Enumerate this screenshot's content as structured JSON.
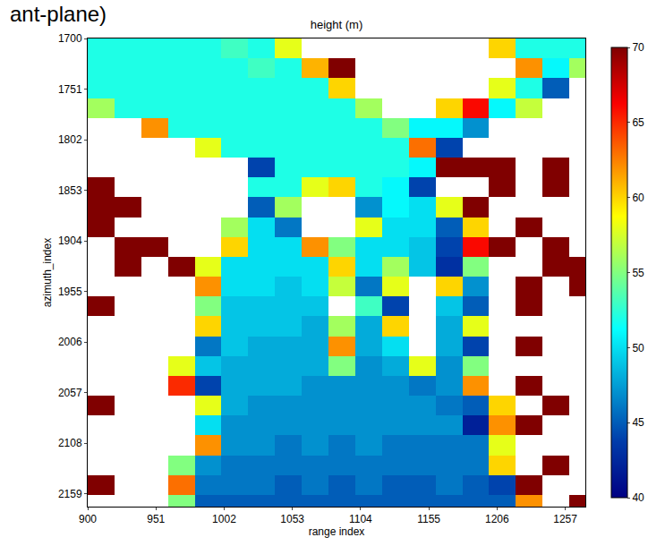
{
  "chart_data": {
    "type": "heatmap",
    "title": "height (m)",
    "annotations": [
      "ant-plane)"
    ],
    "x_label": "range index",
    "y_label": "azimuth_index",
    "color": "Jet",
    "xlim": [
      900,
      1272
    ],
    "ylim": [
      2172,
      1700
    ],
    "xticks": [
      900,
      951,
      1002,
      1053,
      1104,
      1155,
      1206,
      1257
    ],
    "yticks": [
      1700,
      1751,
      1802,
      1853,
      1904,
      1955,
      2006,
      2057,
      2108,
      2159
    ],
    "zlim": [
      40,
      70
    ],
    "zticks": [
      40,
      45,
      50,
      55,
      60,
      65,
      70
    ],
    "x": [
      910,
      930,
      950,
      970,
      990,
      1010,
      1030,
      1050,
      1070,
      1090,
      1110,
      1130,
      1150,
      1170,
      1190,
      1210,
      1230,
      1250,
      1270
    ],
    "y": [
      1710,
      1730,
      1750,
      1770,
      1790,
      1810,
      1830,
      1850,
      1870,
      1890,
      1910,
      1930,
      1950,
      1970,
      1990,
      2010,
      2030,
      2050,
      2070,
      2090,
      2110,
      2130,
      2150,
      2170
    ],
    "z": [
      [
        52,
        52,
        52,
        52,
        52,
        53,
        52,
        58,
        null,
        null,
        null,
        null,
        null,
        null,
        null,
        60,
        52,
        52,
        52
      ],
      [
        52,
        52,
        52,
        52,
        52,
        52,
        53,
        52,
        61,
        70,
        null,
        null,
        null,
        null,
        null,
        null,
        62,
        51,
        56
      ],
      [
        52,
        52,
        52,
        52,
        52,
        52,
        52,
        52,
        52,
        60,
        null,
        null,
        null,
        null,
        null,
        58,
        52,
        45,
        null
      ],
      [
        56,
        52,
        52,
        52,
        52,
        52,
        52,
        52,
        52,
        52,
        56,
        null,
        null,
        60,
        66,
        51,
        57,
        null,
        null
      ],
      [
        null,
        null,
        62,
        52,
        52,
        52,
        52,
        52,
        52,
        52,
        52,
        55,
        51,
        51,
        47,
        null,
        null,
        null,
        null
      ],
      [
        null,
        null,
        null,
        null,
        58,
        52,
        52,
        52,
        52,
        52,
        52,
        52,
        63,
        44,
        null,
        null,
        null,
        null,
        null
      ],
      [
        null,
        null,
        null,
        null,
        null,
        null,
        44,
        52,
        52,
        52,
        52,
        52,
        51,
        70,
        70,
        70,
        null,
        70,
        null
      ],
      [
        70,
        null,
        null,
        null,
        null,
        null,
        52,
        52,
        58,
        60,
        52,
        51,
        44,
        null,
        null,
        70,
        null,
        70,
        null
      ],
      [
        70,
        70,
        null,
        null,
        null,
        null,
        45,
        56,
        null,
        null,
        47,
        51,
        50,
        58,
        70,
        null,
        null,
        null,
        null
      ],
      [
        70,
        null,
        null,
        null,
        null,
        56,
        50,
        46,
        null,
        null,
        58,
        50,
        50,
        45,
        60,
        null,
        70,
        null,
        null
      ],
      [
        null,
        70,
        70,
        null,
        null,
        60,
        50,
        50,
        62,
        55,
        50,
        50,
        49,
        44,
        66,
        70,
        null,
        70,
        null
      ],
      [
        null,
        70,
        null,
        70,
        58,
        50,
        50,
        50,
        50,
        60,
        50,
        56,
        49,
        43,
        55,
        null,
        null,
        70,
        70
      ],
      [
        null,
        null,
        null,
        null,
        62,
        50,
        50,
        49,
        50,
        57,
        46,
        58,
        null,
        60,
        47,
        null,
        70,
        null,
        70
      ],
      [
        70,
        null,
        null,
        null,
        55,
        49,
        49,
        49,
        49,
        null,
        53,
        44,
        null,
        49,
        45,
        null,
        70,
        null,
        null
      ],
      [
        null,
        null,
        null,
        null,
        60,
        49,
        49,
        49,
        48,
        56,
        48,
        60,
        null,
        48,
        58,
        null,
        null,
        null,
        null
      ],
      [
        null,
        null,
        null,
        null,
        46,
        49,
        48,
        48,
        48,
        62,
        48,
        50,
        null,
        48,
        44,
        null,
        70,
        null,
        null
      ],
      [
        null,
        null,
        null,
        58,
        49,
        48,
        48,
        48,
        48,
        55,
        47,
        48,
        58,
        47,
        55,
        null,
        null,
        null,
        null
      ],
      [
        null,
        null,
        null,
        65,
        44,
        48,
        48,
        48,
        47,
        47,
        47,
        47,
        46,
        47,
        62,
        null,
        70,
        null,
        null
      ],
      [
        70,
        null,
        null,
        null,
        58,
        48,
        47,
        47,
        47,
        47,
        47,
        47,
        47,
        46,
        45,
        60,
        null,
        70,
        null
      ],
      [
        null,
        null,
        null,
        null,
        50,
        47,
        47,
        47,
        47,
        47,
        47,
        47,
        47,
        47,
        42,
        62,
        70,
        null,
        null
      ],
      [
        null,
        null,
        null,
        null,
        62,
        47,
        47,
        46,
        47,
        46,
        47,
        46,
        46,
        46,
        46,
        58,
        null,
        null,
        null
      ],
      [
        null,
        null,
        null,
        55,
        47,
        46,
        46,
        46,
        46,
        46,
        46,
        46,
        46,
        46,
        46,
        60,
        null,
        70,
        null
      ],
      [
        70,
        null,
        null,
        63,
        46,
        46,
        46,
        45,
        46,
        45,
        46,
        45,
        45,
        46,
        45,
        44,
        70,
        null,
        null
      ],
      [
        null,
        null,
        null,
        55,
        45,
        45,
        45,
        45,
        45,
        45,
        45,
        45,
        45,
        45,
        45,
        45,
        62,
        null,
        70
      ]
    ]
  }
}
